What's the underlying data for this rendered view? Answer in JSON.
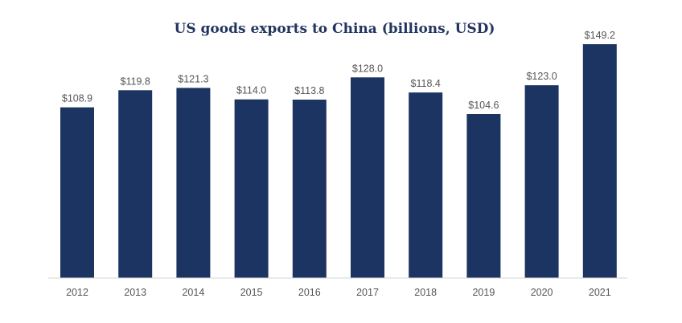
{
  "chart_data": {
    "type": "bar",
    "title": "US goods exports to China (billions, USD)",
    "xlabel": "",
    "ylabel": "",
    "categories": [
      "2012",
      "2013",
      "2014",
      "2015",
      "2016",
      "2017",
      "2018",
      "2019",
      "2020",
      "2021"
    ],
    "values": [
      108.9,
      119.8,
      121.3,
      114.0,
      113.8,
      128.0,
      118.4,
      104.6,
      123.0,
      149.2
    ],
    "data_labels": [
      "$108.9",
      "$119.8",
      "$121.3",
      "$114.0",
      "$113.8",
      "$128.0",
      "$118.4",
      "$104.6",
      "$123.0",
      "$149.2"
    ],
    "ylim": [
      0,
      149.2
    ],
    "grid": false,
    "legend": "none",
    "colors": {
      "bar": "#1c3461",
      "title": "#22355f",
      "labels": "#555555"
    }
  }
}
